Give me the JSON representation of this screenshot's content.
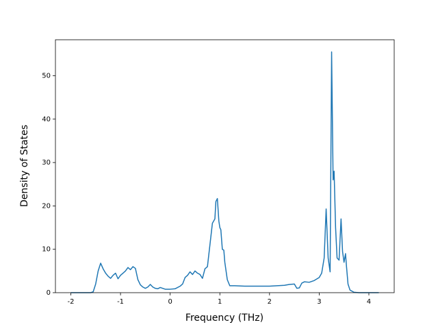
{
  "chart_data": {
    "type": "line",
    "xlabel": "Frequency (THz)",
    "ylabel": "Density of States",
    "color": "#1f77b4",
    "x": [
      -2.0,
      -1.6,
      -1.55,
      -1.5,
      -1.45,
      -1.4,
      -1.35,
      -1.3,
      -1.25,
      -1.2,
      -1.15,
      -1.1,
      -1.05,
      -1.0,
      -0.95,
      -0.9,
      -0.85,
      -0.8,
      -0.75,
      -0.7,
      -0.65,
      -0.6,
      -0.55,
      -0.5,
      -0.45,
      -0.4,
      -0.35,
      -0.3,
      -0.25,
      -0.2,
      -0.15,
      -0.1,
      0.0,
      0.1,
      0.2,
      0.25,
      0.3,
      0.35,
      0.4,
      0.45,
      0.5,
      0.55,
      0.6,
      0.65,
      0.7,
      0.75,
      0.8,
      0.85,
      0.9,
      0.92,
      0.95,
      0.98,
      1.0,
      1.02,
      1.05,
      1.08,
      1.1,
      1.15,
      1.2,
      1.3,
      1.5,
      2.0,
      2.3,
      2.4,
      2.5,
      2.55,
      2.6,
      2.65,
      2.7,
      2.8,
      2.9,
      3.0,
      3.05,
      3.1,
      3.14,
      3.18,
      3.22,
      3.25,
      3.28,
      3.3,
      3.33,
      3.36,
      3.4,
      3.44,
      3.47,
      3.5,
      3.53,
      3.55,
      3.58,
      3.62,
      3.7,
      3.8,
      4.2
    ],
    "values": [
      0,
      0,
      0.2,
      2,
      5,
      6.8,
      5.5,
      4.5,
      3.8,
      3.3,
      4,
      4.5,
      3.2,
      4,
      4.5,
      5,
      5.8,
      5.3,
      6,
      5.6,
      3,
      1.8,
      1.3,
      1,
      1.3,
      1.9,
      1.3,
      1,
      0.9,
      1.2,
      1,
      0.8,
      0.8,
      0.9,
      1.5,
      2,
      3.5,
      4,
      4.8,
      4.2,
      5,
      4.5,
      4.2,
      3.3,
      5.5,
      6,
      11,
      16,
      17,
      21,
      21.7,
      16.5,
      15,
      14.5,
      10,
      9.8,
      7,
      3,
      1.6,
      1.6,
      1.5,
      1.5,
      1.7,
      1.9,
      2,
      1,
      1.1,
      2.2,
      2.5,
      2.4,
      2.8,
      3.5,
      4.5,
      8,
      19.3,
      8,
      4.8,
      55.5,
      26,
      28,
      15,
      8,
      7.5,
      17,
      9.5,
      7,
      9,
      6,
      2,
      0.6,
      0.1,
      0,
      0
    ],
    "xlim": [
      -2.31,
      4.51
    ],
    "xticks": [
      -2,
      -1,
      0,
      1,
      2,
      3,
      4
    ],
    "ylim": [
      0,
      58.3
    ],
    "yticks": [
      0,
      10,
      20,
      30,
      40,
      50
    ]
  }
}
